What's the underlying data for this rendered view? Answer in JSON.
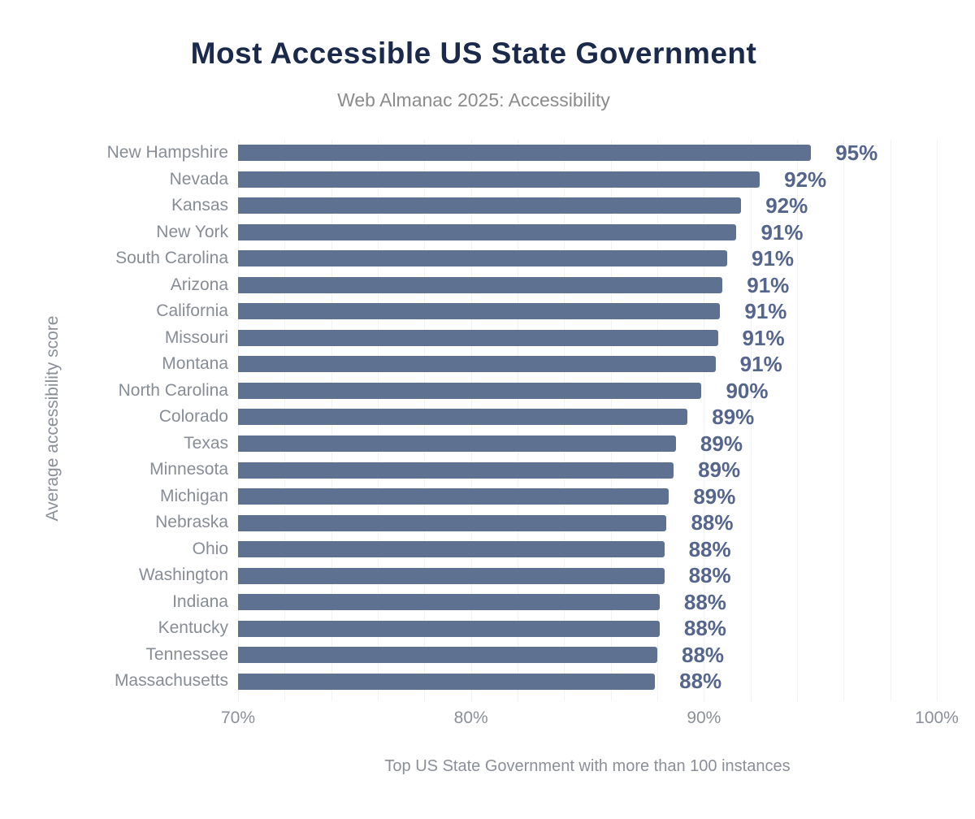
{
  "header": {
    "title": "Most Accessible US State Government",
    "subtitle": "Web Almanac 2025: Accessibility"
  },
  "chart_data": {
    "type": "bar",
    "orientation": "horizontal",
    "title": "Most Accessible US State Government",
    "subtitle": "Web Almanac 2025: Accessibility",
    "ylabel": "Average accessibility score",
    "caption": "Top US State Government with more than 100 instances",
    "categories": [
      "New Hampshire",
      "Nevada",
      "Kansas",
      "New York",
      "South Carolina",
      "Arizona",
      "California",
      "Missouri",
      "Montana",
      "North Carolina",
      "Colorado",
      "Texas",
      "Minnesota",
      "Michigan",
      "Nebraska",
      "Ohio",
      "Washington",
      "Indiana",
      "Kentucky",
      "Tennessee",
      "Massachusetts"
    ],
    "values": [
      95,
      92,
      92,
      91,
      91,
      91,
      91,
      91,
      91,
      90,
      89,
      89,
      89,
      89,
      88,
      88,
      88,
      88,
      88,
      88,
      88
    ],
    "value_labels": [
      "95%",
      "92%",
      "92%",
      "91%",
      "91%",
      "91%",
      "91%",
      "91%",
      "91%",
      "90%",
      "89%",
      "89%",
      "89%",
      "89%",
      "88%",
      "88%",
      "88%",
      "88%",
      "88%",
      "88%",
      "88%"
    ],
    "values_precise": [
      94.6,
      92.4,
      91.6,
      91.4,
      91.0,
      90.8,
      90.7,
      90.6,
      90.5,
      89.9,
      89.3,
      88.8,
      88.7,
      88.5,
      88.4,
      88.3,
      88.3,
      88.1,
      88.1,
      88.0,
      87.9
    ],
    "xlim": [
      70,
      100
    ],
    "x_ticks": [
      {
        "value": 70,
        "label": "70%"
      },
      {
        "value": 80,
        "label": "80%"
      },
      {
        "value": 90,
        "label": "90%"
      },
      {
        "value": 100,
        "label": "100%"
      }
    ],
    "grid": {
      "minor_step_pct": 2,
      "on": true,
      "color": "#f1f2f5"
    },
    "legend": "none",
    "colors": {
      "background": "#ffffff",
      "bar": "#5e7190",
      "value_label": "#55658c",
      "axis_text": "#8a8f98",
      "state_label": "#878d96",
      "title": "#1b2a4a",
      "subtitle": "#8b8b8b"
    }
  }
}
